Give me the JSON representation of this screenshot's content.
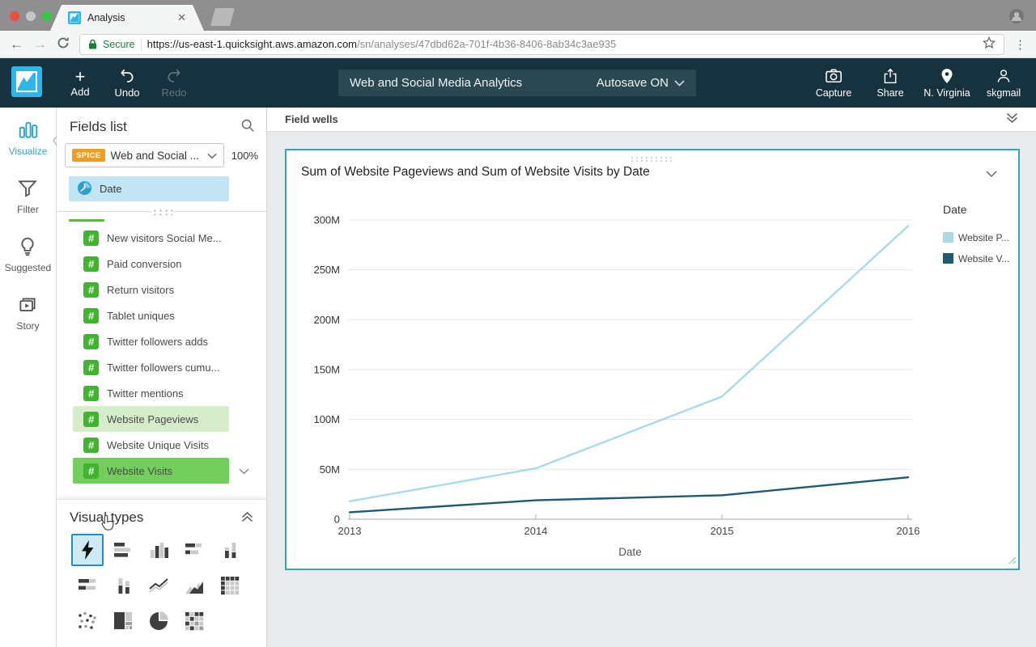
{
  "browser": {
    "tab_title": "Analysis",
    "secure_label": "Secure",
    "url_host": "https://us-east-1.quicksight.aws.amazon.com",
    "url_path": "/sn/analyses/47dbd62a-701f-4b36-8406-8ab34c3ae935"
  },
  "navbar": {
    "add_label": "Add",
    "undo_label": "Undo",
    "redo_label": "Redo",
    "analysis_title": "Web and Social Media Analytics",
    "autosave_label": "Autosave ON",
    "capture_label": "Capture",
    "share_label": "Share",
    "region_label": "N. Virginia",
    "user_label": "skgmail",
    "bg_color": "#16323e",
    "accent_color": "#2bb7e9"
  },
  "left_rail": {
    "items": [
      {
        "label": "Visualize",
        "icon": "bar-chart-icon",
        "active": true
      },
      {
        "label": "Filter",
        "icon": "funnel-icon",
        "active": false
      },
      {
        "label": "Suggested",
        "icon": "lightbulb-icon",
        "active": false
      },
      {
        "label": "Story",
        "icon": "story-icon",
        "active": false
      }
    ]
  },
  "fields_panel": {
    "title": "Fields list",
    "dataset": {
      "badge": "SPICE",
      "name": "Web and Social ...",
      "status": "100%",
      "badge_color": "#f09c20"
    },
    "date_field": {
      "label": "Date",
      "highlight_color": "#c3e5f3"
    },
    "field_icon_color": "#3eb52c",
    "fields": [
      {
        "label": "New visitors Social Me...",
        "highlight": "none"
      },
      {
        "label": "Paid conversion",
        "highlight": "none"
      },
      {
        "label": "Return visitors",
        "highlight": "none"
      },
      {
        "label": "Tablet uniques",
        "highlight": "none"
      },
      {
        "label": "Twitter followers adds",
        "highlight": "none"
      },
      {
        "label": "Twitter followers cumu...",
        "highlight": "none"
      },
      {
        "label": "Twitter mentions",
        "highlight": "none"
      },
      {
        "label": "Website Pageviews",
        "highlight": "light"
      },
      {
        "label": "Website Unique Visits",
        "highlight": "none"
      },
      {
        "label": "Website Visits",
        "highlight": "strong",
        "menu": true
      }
    ],
    "highlight_light_color": "#d5edcb",
    "highlight_strong_color": "#74ce5e"
  },
  "visual_types": {
    "title": "Visual types",
    "selected": "auto-graph",
    "types": [
      "auto-graph",
      "horizontal-bar",
      "vertical-bar",
      "horizontal-stacked-bar",
      "vertical-grouped-bar",
      "horizontal-stacked-100",
      "vertical-stacked-bar",
      "line-chart",
      "area-chart",
      "pivot-table",
      "scatter-plot",
      "tree-map",
      "pie-chart",
      "heat-map"
    ]
  },
  "field_wells": {
    "label": "Field wells"
  },
  "chart_card": {
    "title": "Sum of Website Pageviews and Sum of Website Visits by Date",
    "border_color": "#3b9fb7"
  },
  "chart_data": {
    "type": "line",
    "title": "Sum of Website Pageviews and Sum of Website Visits by Date",
    "x": [
      2013,
      2014,
      2015,
      2016
    ],
    "x_ticks": [
      "2013",
      "2014",
      "2015",
      "2016"
    ],
    "series": [
      {
        "name": "Sum of Website Pageviews",
        "legend_label": "Website P...",
        "color": "#a7dbec",
        "values": [
          18000000,
          51000000,
          123000000,
          294000000
        ]
      },
      {
        "name": "Sum of Website Visits",
        "legend_label": "Website V...",
        "color": "#1f5a75",
        "values": [
          7000000,
          19000000,
          24000000,
          42000000
        ]
      }
    ],
    "xlabel": "Date",
    "ylabel": "",
    "y_ticks": [
      "0",
      "50M",
      "100M",
      "150M",
      "200M",
      "250M",
      "300M"
    ],
    "ylim": [
      0,
      300000000
    ],
    "grid": true,
    "legend_title": "Date",
    "legend_position": "right"
  }
}
